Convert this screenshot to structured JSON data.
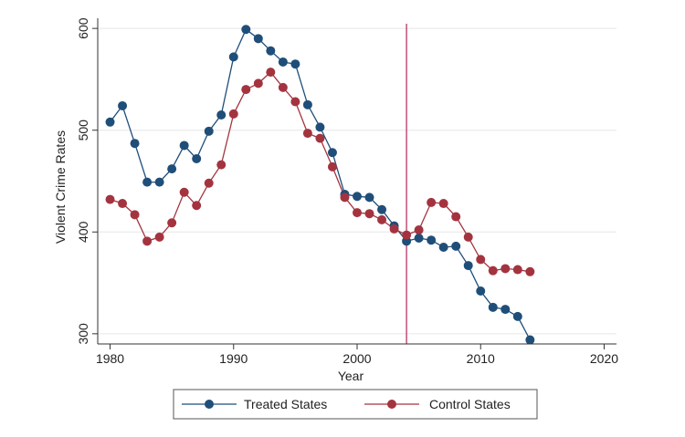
{
  "chart_data": {
    "type": "line",
    "xlabel": "Year",
    "ylabel": "Violent Crime Rates",
    "xlim": [
      1979,
      2021
    ],
    "ylim": [
      290,
      610
    ],
    "x_ticks": [
      1980,
      1990,
      2000,
      2010,
      2020
    ],
    "y_ticks": [
      300,
      400,
      500,
      600
    ],
    "grid": true,
    "legend_position": "bottom",
    "vertical_line": {
      "x": 2004,
      "color": "#b3245a"
    },
    "x": [
      1980,
      1981,
      1982,
      1983,
      1984,
      1985,
      1986,
      1987,
      1988,
      1989,
      1990,
      1991,
      1992,
      1993,
      1994,
      1995,
      1996,
      1997,
      1998,
      1999,
      2000,
      2001,
      2002,
      2003,
      2004,
      2005,
      2006,
      2007,
      2008,
      2009,
      2010,
      2011,
      2012,
      2013,
      2014
    ],
    "series": [
      {
        "name": "Treated States",
        "color": "#1f4e79",
        "values": [
          508,
          524,
          487,
          449,
          449,
          462,
          485,
          472,
          499,
          515,
          572,
          599,
          590,
          578,
          567,
          565,
          525,
          503,
          478,
          437,
          435,
          434,
          422,
          406,
          391,
          394,
          392,
          385,
          386,
          367,
          342,
          326,
          324,
          317,
          294
        ]
      },
      {
        "name": "Control States",
        "color": "#a3343f",
        "values": [
          432,
          428,
          417,
          391,
          395,
          409,
          439,
          426,
          448,
          466,
          516,
          540,
          546,
          557,
          542,
          528,
          497,
          492,
          464,
          434,
          419,
          418,
          412,
          403,
          397,
          402,
          429,
          428,
          415,
          395,
          373,
          362,
          364,
          363,
          361
        ]
      }
    ]
  }
}
